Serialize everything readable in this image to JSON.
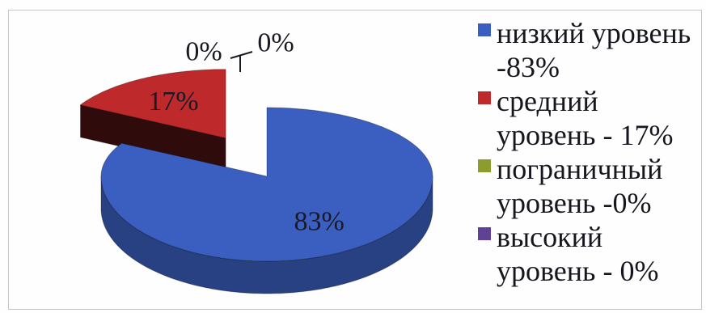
{
  "chart_data": {
    "type": "pie",
    "three_d": true,
    "categories": [
      "низкий уровень -83%",
      "средний уровень - 17%",
      "пограничный уровень -0%",
      "высокий уровень - 0%"
    ],
    "values": [
      83,
      17,
      0,
      0
    ],
    "data_labels": [
      "83%",
      "17%",
      "0%",
      "0%"
    ],
    "colors": [
      "#3b5fc0",
      "#be2a2c",
      "#8c9c2e",
      "#5f4196"
    ],
    "exploded": [
      false,
      true,
      false,
      false
    ],
    "legend_position": "right"
  }
}
